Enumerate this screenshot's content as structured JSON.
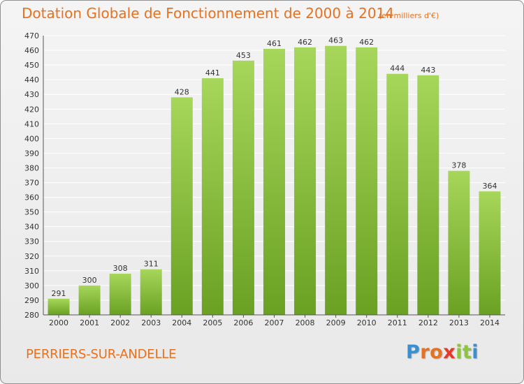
{
  "header": {
    "title": "Dotation Globale de Fonctionnement de 2000 à 2014",
    "units": "(en milliers d'€)"
  },
  "footer": {
    "commune": "PERRIERS-SUR-ANDELLE",
    "logo": [
      "P",
      "r",
      "o",
      "x",
      "i",
      "t",
      "i"
    ],
    "logo_colors": [
      "#3a8fd0",
      "#e8711f",
      "#e8711f",
      "#e23b2a",
      "#8cc63f",
      "#8cc63f",
      "#3a8fd0"
    ]
  },
  "colors": {
    "bar_top": "#a6d65a",
    "bar_bottom": "#6aa123",
    "grid": "#ffffff",
    "accent": "#e8711f"
  },
  "chart_data": {
    "type": "bar",
    "title": "Dotation Globale de Fonctionnement de 2000 à 2014",
    "xlabel": "",
    "ylabel": "",
    "categories": [
      "2000",
      "2001",
      "2002",
      "2003",
      "2004",
      "2005",
      "2006",
      "2007",
      "2008",
      "2009",
      "2010",
      "2011",
      "2012",
      "2013",
      "2014"
    ],
    "values": [
      291,
      300,
      308,
      311,
      428,
      441,
      453,
      461,
      462,
      463,
      462,
      444,
      443,
      378,
      364
    ],
    "ylim": [
      280,
      470
    ],
    "yticks": [
      280,
      290,
      300,
      310,
      320,
      330,
      340,
      350,
      360,
      370,
      380,
      390,
      400,
      410,
      420,
      430,
      440,
      450,
      460,
      470
    ],
    "grid": true,
    "legend": "none"
  }
}
